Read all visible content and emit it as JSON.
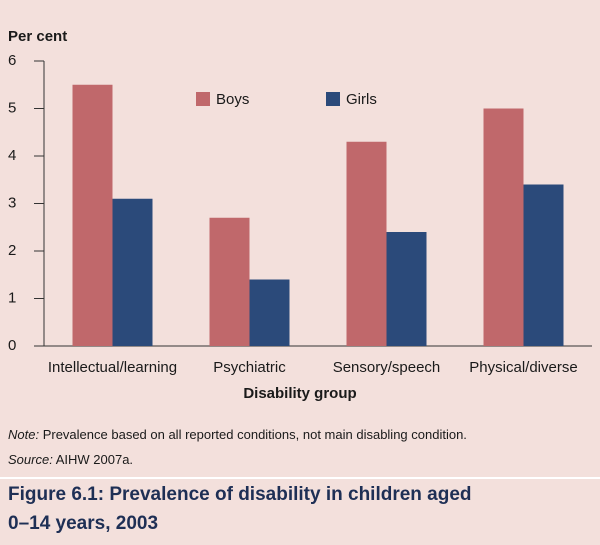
{
  "chart_data": {
    "type": "bar",
    "y_label": "Per cent",
    "x_label": "Disability group",
    "categories": [
      "Intellectual/learning",
      "Psychiatric",
      "Sensory/speech",
      "Physical/diverse"
    ],
    "series": [
      {
        "name": "Boys",
        "color": "#c0686b",
        "values": [
          5.5,
          2.7,
          4.3,
          5.0
        ]
      },
      {
        "name": "Girls",
        "color": "#2b4a7a",
        "values": [
          3.1,
          1.4,
          2.4,
          3.4
        ]
      }
    ],
    "ylim": [
      0,
      6
    ],
    "yticks": [
      0,
      1,
      2,
      3,
      4,
      5,
      6
    ]
  },
  "note": {
    "label": "Note:",
    "text": "Prevalence based on all reported conditions, not main disabling condition."
  },
  "source": {
    "label": "Source:",
    "text": "AIHW 2007a."
  },
  "figure_title": [
    "Figure 6.1: Prevalence of disability in children aged",
    "0–14 years, 2003"
  ]
}
